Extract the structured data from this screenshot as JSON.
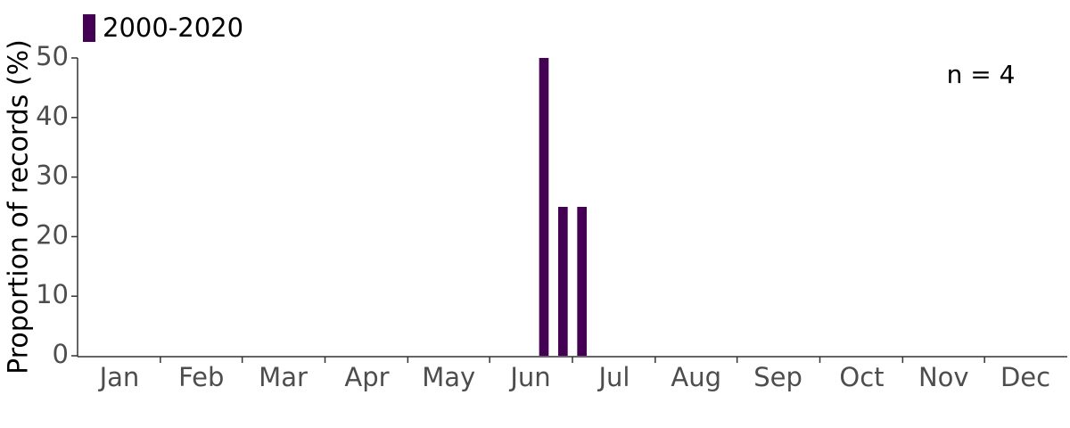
{
  "chart_data": {
    "type": "bar",
    "y_label": "Proportion of records (%)",
    "annotation": "n = 4",
    "series": [
      {
        "name": "2000-2020",
        "color": "#440154",
        "x": [
          24.5,
          25.5,
          26.5
        ],
        "values": [
          50,
          25,
          25
        ]
      }
    ],
    "xlim": [
      0,
      52
    ],
    "xticks": [
      {
        "value": 2.2,
        "label": "Jan"
      },
      {
        "value": 6.5,
        "label": "Feb"
      },
      {
        "value": 10.8,
        "label": "Mar"
      },
      {
        "value": 15.2,
        "label": "Apr"
      },
      {
        "value": 19.5,
        "label": "May"
      },
      {
        "value": 23.8,
        "label": "Jun"
      },
      {
        "value": 28.2,
        "label": "Jul"
      },
      {
        "value": 32.5,
        "label": "Aug"
      },
      {
        "value": 36.8,
        "label": "Sep"
      },
      {
        "value": 41.2,
        "label": "Oct"
      },
      {
        "value": 45.5,
        "label": "Nov"
      },
      {
        "value": 49.8,
        "label": "Dec"
      }
    ],
    "ylim": [
      0,
      50
    ],
    "yticks": [
      0,
      10,
      20,
      30,
      40,
      50
    ],
    "legend": "top-left"
  }
}
